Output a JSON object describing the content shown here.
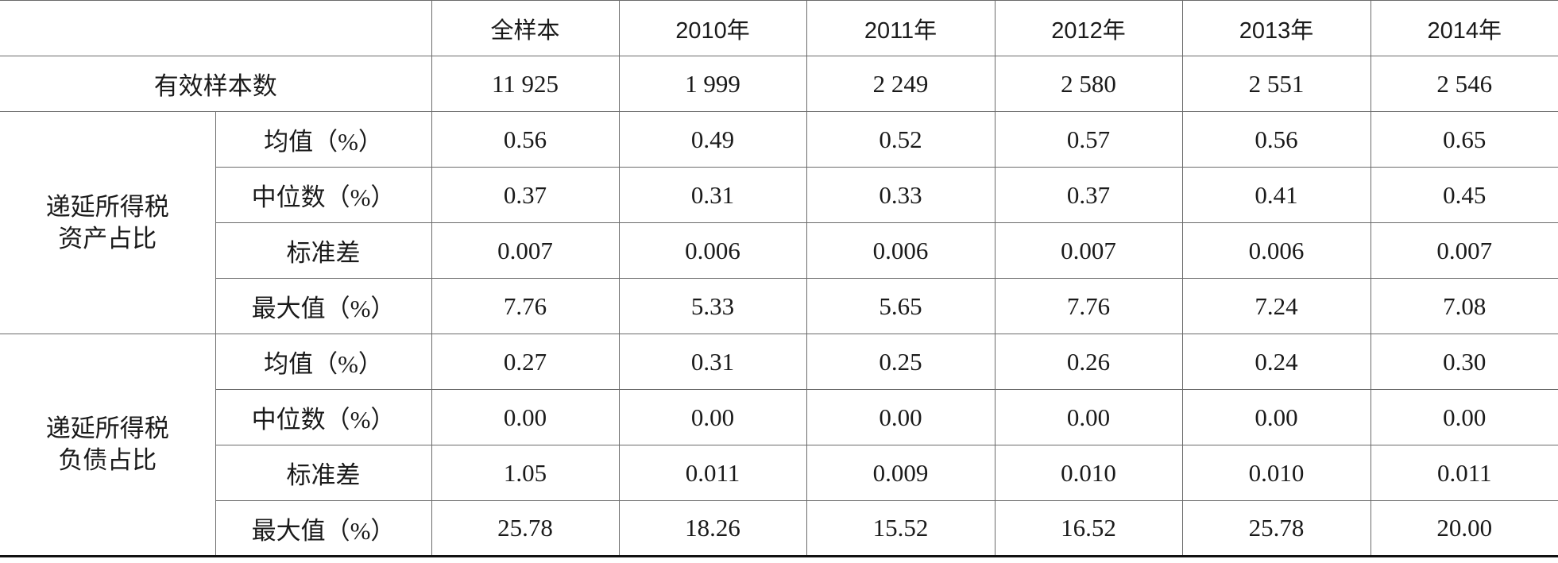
{
  "table": {
    "header": [
      "全样本",
      "2010年",
      "2011年",
      "2012年",
      "2013年",
      "2014年"
    ],
    "top_row": {
      "label": "有效样本数",
      "cells": [
        "11 925",
        "1 999",
        "2 249",
        "2 580",
        "2 551",
        "2 546"
      ]
    },
    "groups": [
      {
        "label": [
          "递延所得税",
          "资产占比"
        ],
        "rows": [
          {
            "label": "均值（%）",
            "cells": [
              "0.56",
              "0.49",
              "0.52",
              "0.57",
              "0.56",
              "0.65"
            ]
          },
          {
            "label": "中位数（%）",
            "cells": [
              "0.37",
              "0.31",
              "0.33",
              "0.37",
              "0.41",
              "0.45"
            ]
          },
          {
            "label": "标准差",
            "cells": [
              "0.007",
              "0.006",
              "0.006",
              "0.007",
              "0.006",
              "0.007"
            ]
          },
          {
            "label": "最大值（%）",
            "cells": [
              "7.76",
              "5.33",
              "5.65",
              "7.76",
              "7.24",
              "7.08"
            ]
          }
        ]
      },
      {
        "label": [
          "递延所得税",
          "负债占比"
        ],
        "rows": [
          {
            "label": "均值（%）",
            "cells": [
              "0.27",
              "0.31",
              "0.25",
              "0.26",
              "0.24",
              "0.30"
            ]
          },
          {
            "label": "中位数（%）",
            "cells": [
              "0.00",
              "0.00",
              "0.00",
              "0.00",
              "0.00",
              "0.00"
            ]
          },
          {
            "label": "标准差",
            "cells": [
              "1.05",
              "0.011",
              "0.009",
              "0.010",
              "0.010",
              "0.011"
            ]
          },
          {
            "label": "最大值（%）",
            "cells": [
              "25.78",
              "18.26",
              "15.52",
              "16.52",
              "25.78",
              "20.00"
            ]
          }
        ]
      }
    ]
  }
}
